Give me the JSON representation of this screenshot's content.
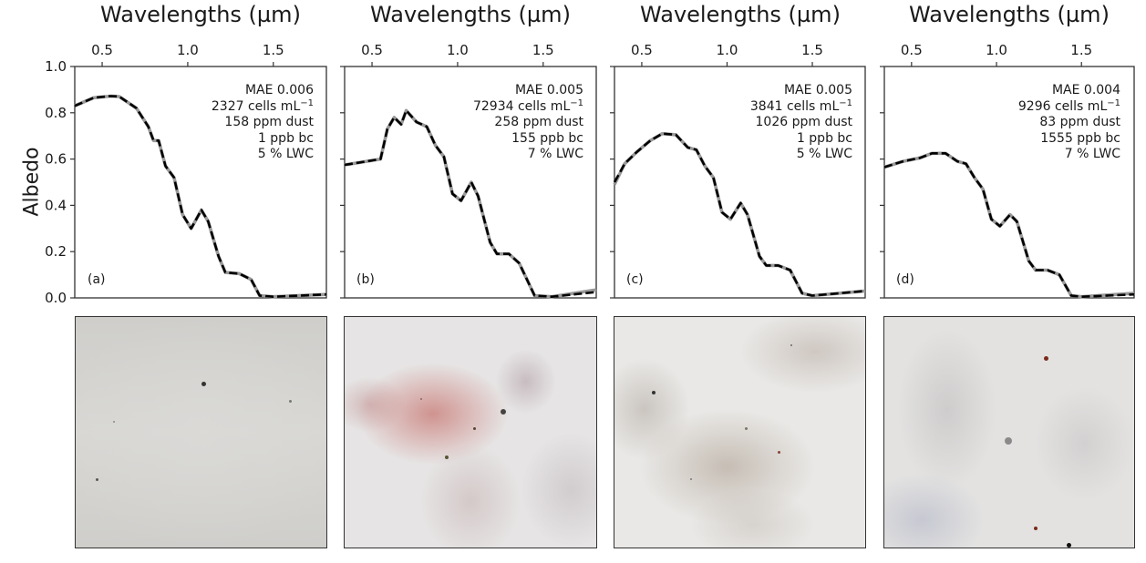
{
  "chart_data": [
    {
      "type": "line",
      "panel_label": "(a)",
      "xlabel": "Wavelengths (µm)",
      "ylabel": "Albedo",
      "xlim": [
        0.34,
        1.81
      ],
      "ylim": [
        0.0,
        1.0
      ],
      "xticks": [
        "0.5",
        "1.0",
        "1.5"
      ],
      "yticks": [
        "0.0",
        "0.2",
        "0.4",
        "0.6",
        "0.8",
        "1.0"
      ],
      "annotation": {
        "mae": "MAE 0.006",
        "cells": "2327 cells mL",
        "cells_exp": "−1",
        "dust": "158 ppm dust",
        "bc": "1 ppb bc",
        "lwc": "5 % LWC"
      },
      "x": [
        0.34,
        0.45,
        0.55,
        0.6,
        0.7,
        0.77,
        0.8,
        0.83,
        0.87,
        0.92,
        0.97,
        1.02,
        1.08,
        1.12,
        1.18,
        1.22,
        1.3,
        1.37,
        1.42,
        1.5,
        1.81
      ],
      "series": [
        {
          "name": "measured",
          "style": "solid-gray",
          "values": [
            0.83,
            0.865,
            0.872,
            0.87,
            0.82,
            0.74,
            0.68,
            0.68,
            0.57,
            0.52,
            0.36,
            0.3,
            0.38,
            0.33,
            0.18,
            0.11,
            0.105,
            0.08,
            0.01,
            0.005,
            0.015
          ]
        },
        {
          "name": "modeled",
          "style": "dashed-black",
          "values": [
            0.83,
            0.865,
            0.872,
            0.87,
            0.82,
            0.74,
            0.68,
            0.68,
            0.57,
            0.52,
            0.36,
            0.3,
            0.38,
            0.33,
            0.18,
            0.11,
            0.105,
            0.08,
            0.01,
            0.005,
            0.015
          ]
        }
      ]
    },
    {
      "type": "line",
      "panel_label": "(b)",
      "xlabel": "Wavelengths (µm)",
      "xlim": [
        0.34,
        1.81
      ],
      "ylim": [
        0.0,
        1.0
      ],
      "xticks": [
        "0.5",
        "1.0",
        "1.5"
      ],
      "annotation": {
        "mae": "MAE 0.005",
        "cells": "72934 cells mL",
        "cells_exp": "−1",
        "dust": "258 ppm dust",
        "bc": "155 ppb bc",
        "lwc": "7 % LWC"
      },
      "x": [
        0.34,
        0.55,
        0.59,
        0.63,
        0.67,
        0.7,
        0.76,
        0.82,
        0.87,
        0.92,
        0.97,
        1.02,
        1.08,
        1.12,
        1.19,
        1.23,
        1.3,
        1.36,
        1.45,
        1.55,
        1.81
      ],
      "series": [
        {
          "name": "measured",
          "style": "solid-gray",
          "values": [
            0.575,
            0.6,
            0.73,
            0.78,
            0.75,
            0.81,
            0.76,
            0.74,
            0.66,
            0.61,
            0.45,
            0.42,
            0.5,
            0.44,
            0.24,
            0.19,
            0.19,
            0.15,
            0.01,
            0.005,
            0.035
          ]
        },
        {
          "name": "modeled",
          "style": "dashed-black",
          "values": [
            0.575,
            0.6,
            0.73,
            0.78,
            0.75,
            0.81,
            0.76,
            0.74,
            0.66,
            0.61,
            0.45,
            0.42,
            0.5,
            0.44,
            0.24,
            0.19,
            0.19,
            0.15,
            0.01,
            0.005,
            0.025
          ]
        }
      ]
    },
    {
      "type": "line",
      "panel_label": "(c)",
      "xlabel": "Wavelengths (µm)",
      "xlim": [
        0.34,
        1.81
      ],
      "ylim": [
        0.0,
        1.0
      ],
      "xticks": [
        "0.5",
        "1.0",
        "1.5"
      ],
      "annotation": {
        "mae": "MAE 0.005",
        "cells": "3841 cells mL",
        "cells_exp": "−1",
        "dust": "1026 ppm dust",
        "bc": "1 ppb bc",
        "lwc": "5 % LWC"
      },
      "x": [
        0.34,
        0.4,
        0.47,
        0.55,
        0.62,
        0.7,
        0.77,
        0.82,
        0.87,
        0.92,
        0.97,
        1.02,
        1.08,
        1.12,
        1.19,
        1.23,
        1.3,
        1.37,
        1.44,
        1.5,
        1.81
      ],
      "series": [
        {
          "name": "measured",
          "style": "solid-gray",
          "values": [
            0.49,
            0.58,
            0.63,
            0.68,
            0.71,
            0.705,
            0.65,
            0.64,
            0.57,
            0.52,
            0.37,
            0.34,
            0.41,
            0.36,
            0.18,
            0.14,
            0.14,
            0.12,
            0.02,
            0.01,
            0.03
          ]
        },
        {
          "name": "modeled",
          "style": "dashed-black",
          "values": [
            0.5,
            0.58,
            0.63,
            0.68,
            0.71,
            0.705,
            0.65,
            0.64,
            0.57,
            0.52,
            0.37,
            0.34,
            0.41,
            0.36,
            0.18,
            0.14,
            0.14,
            0.12,
            0.02,
            0.01,
            0.03
          ]
        }
      ]
    },
    {
      "type": "line",
      "panel_label": "(d)",
      "xlabel": "Wavelengths (µm)",
      "xlim": [
        0.34,
        1.81
      ],
      "ylim": [
        0.0,
        1.0
      ],
      "xticks": [
        "0.5",
        "1.0",
        "1.5"
      ],
      "annotation": {
        "mae": "MAE 0.004",
        "cells": "9296 cells mL",
        "cells_exp": "−1",
        "dust": "83 ppm dust",
        "bc": "1555 ppb bc",
        "lwc": "7 % LWC"
      },
      "x": [
        0.34,
        0.45,
        0.55,
        0.62,
        0.7,
        0.77,
        0.82,
        0.87,
        0.92,
        0.97,
        1.02,
        1.08,
        1.12,
        1.19,
        1.23,
        1.3,
        1.37,
        1.44,
        1.5,
        1.81
      ],
      "series": [
        {
          "name": "measured",
          "style": "solid-gray",
          "values": [
            0.565,
            0.59,
            0.605,
            0.625,
            0.625,
            0.59,
            0.58,
            0.52,
            0.47,
            0.34,
            0.31,
            0.36,
            0.33,
            0.16,
            0.12,
            0.12,
            0.1,
            0.01,
            0.005,
            0.02
          ]
        },
        {
          "name": "modeled",
          "style": "dashed-black",
          "values": [
            0.565,
            0.59,
            0.605,
            0.625,
            0.625,
            0.59,
            0.58,
            0.52,
            0.47,
            0.34,
            0.31,
            0.36,
            0.33,
            0.16,
            0.12,
            0.12,
            0.1,
            0.01,
            0.005,
            0.015
          ]
        }
      ]
    }
  ],
  "colors": {
    "measured": "#9a9a9a",
    "modeled": "#000000",
    "axis": "#333333"
  },
  "photos": [
    {
      "panel": "(a)",
      "base": "#d8d7d4",
      "tint": "#cfcecb"
    },
    {
      "panel": "(b)",
      "base": "#e6e4e4",
      "tint": "#c88a86"
    },
    {
      "panel": "(c)",
      "base": "#e9e8e6",
      "tint": "#b5ab9f"
    },
    {
      "panel": "(d)",
      "base": "#e3e2e1",
      "tint": "#c9c7c6"
    }
  ]
}
